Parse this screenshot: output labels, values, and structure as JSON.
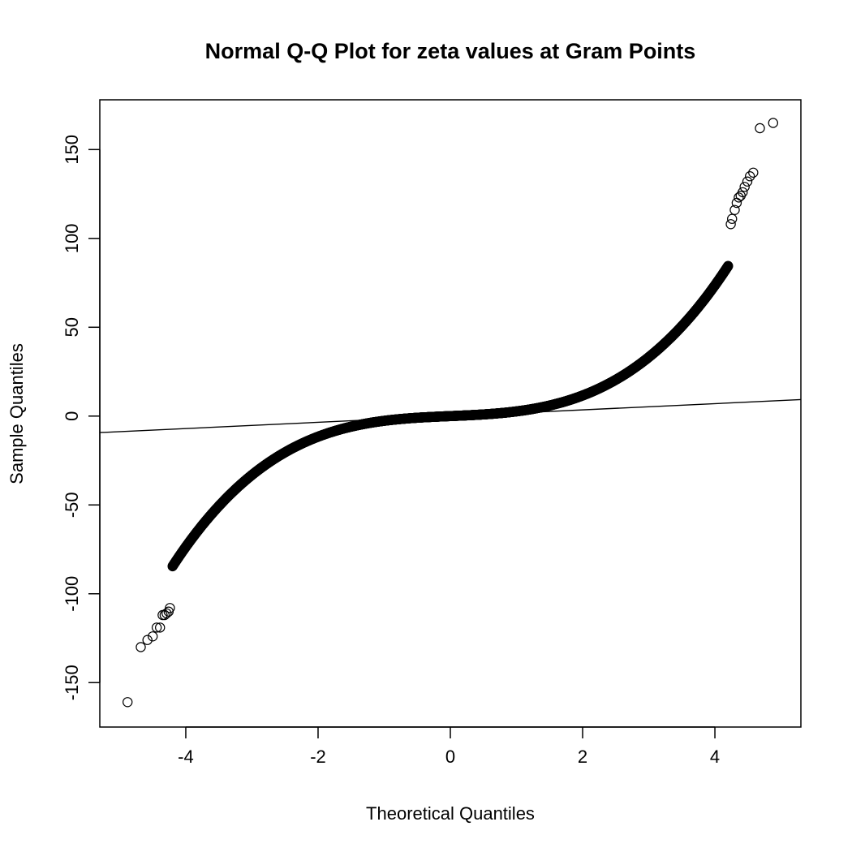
{
  "chart_data": {
    "type": "scatter",
    "title": "Normal Q-Q Plot for zeta values at Gram Points",
    "xlabel": "Theoretical Quantiles",
    "ylabel": "Sample Quantiles",
    "xlim": [
      -5.3,
      5.3
    ],
    "ylim": [
      -175,
      178
    ],
    "x_ticks": [
      -4,
      -2,
      0,
      2,
      4
    ],
    "y_ticks": [
      -150,
      -100,
      -50,
      0,
      50,
      100,
      150
    ],
    "x_tick_labels": [
      "-4",
      "-2",
      "0",
      "2",
      "4"
    ],
    "y_tick_labels": [
      "-150",
      "-100",
      "-50",
      "0",
      "50",
      "100",
      "150"
    ],
    "grid": false,
    "legend": "none",
    "marker": "open-circle",
    "reference_line": {
      "slope": 1.75,
      "intercept": 0.0
    },
    "curve_model": {
      "linear": 1.6,
      "cubic": 1.05
    },
    "bulk_x_range": [
      -4.2,
      4.2
    ],
    "tail_points": [
      {
        "x": -4.88,
        "y": -161
      },
      {
        "x": -4.68,
        "y": -130
      },
      {
        "x": -4.58,
        "y": -126
      },
      {
        "x": -4.5,
        "y": -124
      },
      {
        "x": -4.44,
        "y": -119
      },
      {
        "x": -4.39,
        "y": -119
      },
      {
        "x": -4.35,
        "y": -112
      },
      {
        "x": -4.32,
        "y": -112
      },
      {
        "x": -4.29,
        "y": -111
      },
      {
        "x": -4.26,
        "y": -110
      },
      {
        "x": -4.24,
        "y": -108
      },
      {
        "x": 4.24,
        "y": 108
      },
      {
        "x": 4.26,
        "y": 111
      },
      {
        "x": 4.3,
        "y": 116
      },
      {
        "x": 4.33,
        "y": 120
      },
      {
        "x": 4.36,
        "y": 123
      },
      {
        "x": 4.39,
        "y": 124
      },
      {
        "x": 4.42,
        "y": 126
      },
      {
        "x": 4.45,
        "y": 129
      },
      {
        "x": 4.49,
        "y": 132
      },
      {
        "x": 4.53,
        "y": 135
      },
      {
        "x": 4.58,
        "y": 137
      },
      {
        "x": 4.68,
        "y": 162
      },
      {
        "x": 4.88,
        "y": 165
      }
    ]
  }
}
